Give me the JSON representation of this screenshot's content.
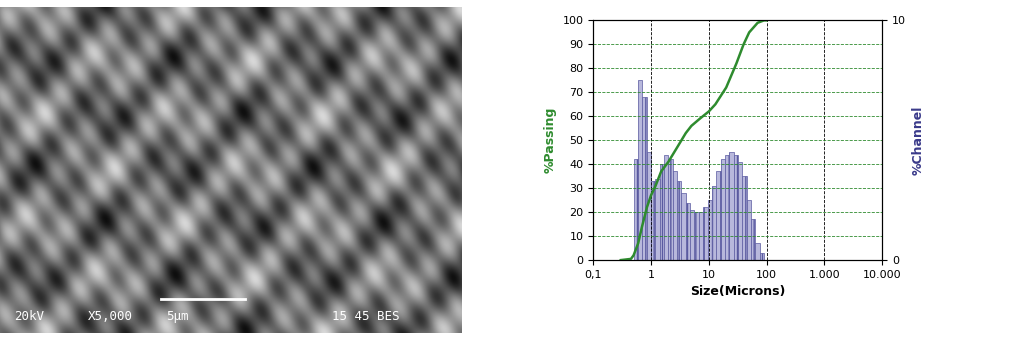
{
  "chart_data": {
    "type": "combo",
    "xlabel": "Size(Microns)",
    "ylabel": "%Passing",
    "y2label": "%Channel",
    "log": "x",
    "grid": true,
    "xlim": [
      0.1,
      10000
    ],
    "xticks": [
      {
        "value": 0.1,
        "label": "0,1"
      },
      1,
      10,
      100,
      {
        "value": 1000,
        "label": "1.000"
      },
      {
        "value": 10000,
        "label": "10.000"
      }
    ],
    "ylim": [
      0,
      100
    ],
    "yticks": [
      0,
      10,
      20,
      30,
      40,
      50,
      60,
      70,
      80,
      90,
      100
    ],
    "y2lim": [
      0,
      10
    ],
    "y2ticks": [
      0,
      10
    ],
    "series": [
      {
        "type": "histogram",
        "axis": "y2",
        "color": "#b8b8dc",
        "bins": [
          0.5,
          0.595,
          0.707,
          0.841,
          1.0,
          1.189,
          1.414,
          1.682,
          2.0,
          2.378,
          2.828,
          3.364,
          4.0,
          4.757,
          5.657,
          6.727,
          8.0,
          9.514,
          11.31,
          13.45,
          16.0,
          19.03,
          22.63,
          26.91,
          32.0,
          38.05,
          45.25,
          53.82,
          64.0,
          76.11,
          90.51
        ],
        "values": [
          4.2,
          7.5,
          6.8,
          4.5,
          3.3,
          3.4,
          4.0,
          4.4,
          4.2,
          3.7,
          3.3,
          2.8,
          2.4,
          2.1,
          2.0,
          2.0,
          2.2,
          2.5,
          3.1,
          3.7,
          4.2,
          4.4,
          4.5,
          4.4,
          4.1,
          3.5,
          2.5,
          1.7,
          0.7,
          0.3
        ]
      },
      {
        "type": "line",
        "axis": "y",
        "color": "#2e8b2e",
        "x": [
          0.3,
          0.45,
          0.5,
          0.6,
          0.7,
          0.85,
          1.0,
          1.2,
          1.5,
          2.0,
          3.0,
          4.0,
          5.0,
          7.0,
          10.0,
          13.0,
          20.0,
          30.0,
          40.0,
          50.0,
          70.0,
          90.0,
          100.0
        ],
        "values": [
          0,
          0.5,
          2,
          7,
          14,
          22,
          27,
          31,
          37,
          41,
          48,
          53,
          56,
          59,
          62,
          65,
          72,
          82,
          90,
          95,
          99,
          100,
          100
        ]
      }
    ]
  },
  "micrograph": {
    "labels": [
      "20kV",
      "X5,000",
      "5μm",
      "15 45 BES"
    ]
  }
}
